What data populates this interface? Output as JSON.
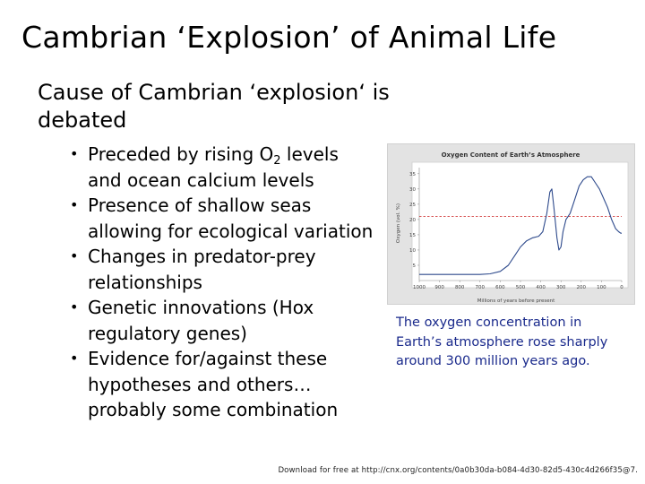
{
  "slide": {
    "title": "Cambrian ‘Explosion’ of Animal Life",
    "subtitle": "Cause of Cambrian ‘explosion‘ is debated",
    "bullets": [
      {
        "pre": "Preceded by rising O",
        "sub": "2",
        "post": " levels and ocean calcium levels"
      },
      {
        "pre": "Presence of shallow seas allowing for ecological variation",
        "sub": "",
        "post": ""
      },
      {
        "pre": "Changes in predator-prey relationships",
        "sub": "",
        "post": ""
      },
      {
        "pre": "Genetic innovations (Hox regulatory genes)",
        "sub": "",
        "post": ""
      },
      {
        "pre": "Evidence for/against these hypotheses and others… probably some combination",
        "sub": "",
        "post": ""
      }
    ],
    "bullet_symbol": "•",
    "caption": "The oxygen concentration in Earth’s atmosphere rose sharply around 300 million years ago.",
    "footer": "Download for free at http://cnx.org/contents/0a0b30da-b084-4d30-82d5-430c4d266f35@7."
  },
  "chart_data": {
    "type": "line",
    "title": "Oxygen Content of Earth’s Atmosphere",
    "xlabel": "Millions of years before present",
    "ylabel": "Oxygen (vol. %)",
    "x_ticks": [
      1000,
      900,
      800,
      700,
      600,
      500,
      400,
      300,
      200,
      100,
      0
    ],
    "y_ticks": [
      5,
      10,
      15,
      20,
      25,
      30,
      35
    ],
    "xlim": [
      1000,
      0
    ],
    "ylim": [
      0,
      37
    ],
    "series": [
      {
        "x": [
          1000,
          900,
          800,
          700,
          650,
          600,
          560,
          530,
          500,
          470,
          440,
          410,
          390,
          370,
          355,
          345,
          335,
          320,
          310,
          300,
          290,
          275,
          255,
          240,
          225,
          210,
          190,
          170,
          150,
          130,
          110,
          90,
          70,
          50,
          30,
          15,
          5,
          0
        ],
        "y": [
          2,
          2,
          2,
          2,
          2.2,
          3,
          5,
          8,
          11,
          13,
          14,
          14.5,
          16,
          22,
          29,
          30,
          24,
          14,
          10,
          11,
          16,
          20,
          22,
          25,
          28,
          31,
          33,
          34,
          34,
          32,
          30,
          27,
          24,
          20,
          17,
          16,
          15.5,
          15.5
        ],
        "color": "#2e4a8c"
      }
    ],
    "reference_line": {
      "y": 21,
      "style": "dashed",
      "color": "#cc2222"
    },
    "grid": false
  }
}
